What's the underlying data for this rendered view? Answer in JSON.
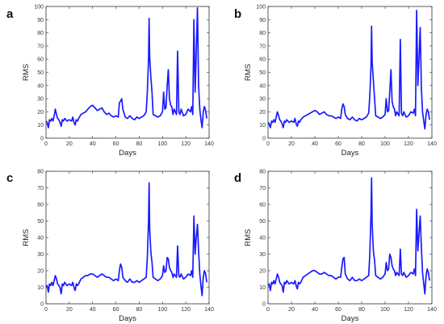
{
  "colors": {
    "series": "#1a1aff",
    "axes": "#333333"
  },
  "chart_data": [
    {
      "type": "line",
      "panel": "a",
      "xlabel": "Days",
      "ylabel": "RMS",
      "xlim": [
        0,
        140
      ],
      "ylim": [
        0,
        100
      ],
      "xticks": [
        0,
        20,
        40,
        60,
        80,
        100,
        120,
        140
      ],
      "yticks": [
        0,
        10,
        20,
        30,
        40,
        50,
        60,
        70,
        80,
        90,
        100
      ],
      "grid": false,
      "series": [
        {
          "x": [
            0,
            1,
            2,
            3,
            4,
            5,
            6,
            7,
            8,
            9,
            10,
            11,
            12,
            13,
            14,
            15,
            16,
            18,
            20,
            22,
            23,
            24,
            25,
            26,
            27,
            28,
            30,
            32,
            34,
            36,
            38,
            40,
            42,
            44,
            46,
            48,
            50,
            52,
            54,
            56,
            58,
            60,
            62,
            63,
            64,
            65,
            66,
            68,
            70,
            72,
            74,
            76,
            78,
            80,
            82,
            84,
            86,
            87,
            88,
            88.5,
            89,
            90,
            91,
            92,
            94,
            96,
            98,
            100,
            101,
            102,
            103,
            104,
            105,
            106,
            107,
            108,
            109,
            110,
            112,
            113,
            114,
            115,
            116,
            118,
            120,
            122,
            124,
            125,
            126,
            127,
            128,
            129,
            130,
            131,
            132,
            133,
            134,
            135,
            136,
            137,
            138
          ],
          "y": [
            13,
            12,
            8,
            14,
            13,
            15,
            13,
            17,
            22,
            18,
            15,
            14,
            12,
            9,
            14,
            13,
            15,
            13,
            14,
            13,
            16,
            12,
            10,
            14,
            13,
            15,
            18,
            19,
            20,
            22,
            24,
            25,
            23,
            21,
            22,
            23,
            20,
            18,
            19,
            17,
            16,
            17,
            16,
            27,
            28,
            30,
            22,
            16,
            15,
            17,
            15,
            14,
            16,
            15,
            16,
            17,
            20,
            35,
            60,
            91,
            62,
            46,
            35,
            18,
            17,
            16,
            17,
            20,
            35,
            22,
            23,
            40,
            52,
            30,
            25,
            24,
            18,
            22,
            18,
            66,
            20,
            18,
            22,
            17,
            18,
            22,
            20,
            24,
            18,
            90,
            35,
            65,
            99,
            40,
            22,
            14,
            8,
            20,
            24,
            21,
            15
          ]
        }
      ]
    },
    {
      "type": "line",
      "panel": "b",
      "xlabel": "Days",
      "ylabel": "RMS",
      "xlim": [
        0,
        140
      ],
      "ylim": [
        0,
        100
      ],
      "xticks": [
        0,
        20,
        40,
        60,
        80,
        100,
        120,
        140
      ],
      "yticks": [
        0,
        10,
        20,
        30,
        40,
        50,
        60,
        70,
        80,
        90,
        100
      ],
      "grid": false,
      "series": [
        {
          "x": [
            0,
            1,
            2,
            3,
            4,
            5,
            6,
            7,
            8,
            9,
            10,
            11,
            12,
            13,
            14,
            15,
            16,
            18,
            20,
            22,
            23,
            24,
            25,
            26,
            27,
            28,
            30,
            32,
            34,
            36,
            38,
            40,
            42,
            44,
            46,
            48,
            50,
            52,
            54,
            56,
            58,
            60,
            62,
            63,
            64,
            65,
            66,
            68,
            70,
            72,
            74,
            76,
            78,
            80,
            82,
            84,
            86,
            87,
            88,
            88.5,
            89,
            90,
            91,
            92,
            94,
            96,
            98,
            100,
            101,
            102,
            103,
            104,
            105,
            106,
            107,
            108,
            109,
            110,
            112,
            113,
            114,
            115,
            116,
            118,
            120,
            122,
            124,
            125,
            126,
            127,
            128,
            129,
            130,
            131,
            132,
            133,
            134,
            135,
            136,
            137,
            138
          ],
          "y": [
            12,
            11,
            8,
            13,
            12,
            14,
            12,
            16,
            20,
            17,
            14,
            13,
            11,
            8,
            13,
            12,
            14,
            12,
            13,
            12,
            15,
            11,
            9,
            13,
            12,
            14,
            16,
            17,
            18,
            19,
            20,
            21,
            20,
            18,
            19,
            20,
            18,
            17,
            17,
            16,
            15,
            16,
            15,
            22,
            26,
            24,
            18,
            15,
            14,
            16,
            14,
            13,
            15,
            14,
            15,
            16,
            19,
            32,
            55,
            85,
            58,
            44,
            30,
            17,
            16,
            15,
            16,
            18,
            30,
            20,
            21,
            35,
            52,
            28,
            24,
            22,
            17,
            20,
            17,
            75,
            19,
            17,
            20,
            16,
            17,
            20,
            19,
            22,
            17,
            97,
            40,
            60,
            84,
            38,
            20,
            13,
            7,
            18,
            22,
            20,
            14
          ]
        }
      ]
    },
    {
      "type": "line",
      "panel": "c",
      "xlabel": "Days",
      "ylabel": "RMS",
      "xlim": [
        0,
        140
      ],
      "ylim": [
        0,
        80
      ],
      "xticks": [
        0,
        20,
        40,
        60,
        80,
        100,
        120,
        140
      ],
      "yticks": [
        0,
        10,
        20,
        30,
        40,
        50,
        60,
        70,
        80
      ],
      "grid": false,
      "series": [
        {
          "x": [
            0,
            1,
            2,
            3,
            4,
            5,
            6,
            7,
            8,
            9,
            10,
            11,
            12,
            13,
            14,
            15,
            16,
            18,
            20,
            22,
            23,
            24,
            25,
            26,
            27,
            28,
            30,
            32,
            34,
            36,
            38,
            40,
            42,
            44,
            46,
            48,
            50,
            52,
            54,
            56,
            58,
            60,
            62,
            63,
            64,
            65,
            66,
            68,
            70,
            72,
            74,
            76,
            78,
            80,
            82,
            84,
            86,
            87,
            88,
            88.5,
            89,
            90,
            91,
            92,
            94,
            96,
            98,
            100,
            101,
            102,
            103,
            104,
            105,
            106,
            107,
            108,
            109,
            110,
            112,
            113,
            114,
            115,
            116,
            118,
            120,
            122,
            124,
            125,
            126,
            127,
            128,
            129,
            130,
            131,
            132,
            133,
            134,
            135,
            136,
            137,
            138
          ],
          "y": [
            10,
            11,
            7,
            12,
            11,
            13,
            11,
            14,
            17,
            15,
            12,
            11,
            10,
            6,
            12,
            11,
            13,
            11,
            12,
            11,
            13,
            10,
            8,
            12,
            11,
            12,
            15,
            16,
            17,
            17,
            18,
            18,
            17,
            16,
            17,
            18,
            17,
            16,
            16,
            15,
            14,
            15,
            14,
            20,
            24,
            22,
            16,
            14,
            13,
            15,
            13,
            13,
            14,
            13,
            14,
            15,
            16,
            28,
            50,
            73,
            45,
            31,
            25,
            16,
            15,
            14,
            15,
            17,
            23,
            19,
            20,
            28,
            27,
            22,
            20,
            19,
            16,
            18,
            16,
            35,
            17,
            16,
            18,
            15,
            16,
            18,
            17,
            20,
            16,
            53,
            30,
            40,
            48,
            32,
            18,
            11,
            5,
            16,
            20,
            18,
            13
          ]
        }
      ]
    },
    {
      "type": "line",
      "panel": "d",
      "xlabel": "Days",
      "ylabel": "RMS",
      "xlim": [
        0,
        140
      ],
      "ylim": [
        0,
        80
      ],
      "xticks": [
        0,
        20,
        40,
        60,
        80,
        100,
        120,
        140
      ],
      "yticks": [
        0,
        10,
        20,
        30,
        40,
        50,
        60,
        70,
        80
      ],
      "grid": false,
      "series": [
        {
          "x": [
            0,
            1,
            2,
            3,
            4,
            5,
            6,
            7,
            8,
            9,
            10,
            11,
            12,
            13,
            14,
            15,
            16,
            18,
            20,
            22,
            23,
            24,
            25,
            26,
            27,
            28,
            30,
            32,
            34,
            36,
            38,
            40,
            42,
            44,
            46,
            48,
            50,
            52,
            54,
            56,
            58,
            60,
            62,
            63,
            64,
            65,
            66,
            68,
            70,
            72,
            74,
            76,
            78,
            80,
            82,
            84,
            86,
            87,
            88,
            88.5,
            89,
            90,
            91,
            92,
            94,
            96,
            98,
            100,
            101,
            102,
            103,
            104,
            105,
            106,
            107,
            108,
            109,
            110,
            112,
            113,
            114,
            115,
            116,
            118,
            120,
            122,
            124,
            125,
            126,
            127,
            128,
            129,
            130,
            131,
            132,
            133,
            134,
            135,
            136,
            137,
            138
          ],
          "y": [
            11,
            12,
            8,
            13,
            12,
            14,
            12,
            15,
            18,
            16,
            13,
            12,
            11,
            7,
            13,
            12,
            14,
            12,
            13,
            12,
            14,
            11,
            9,
            13,
            12,
            13,
            16,
            17,
            18,
            19,
            20,
            20,
            19,
            18,
            18,
            19,
            18,
            17,
            17,
            16,
            15,
            16,
            16,
            22,
            27,
            28,
            18,
            15,
            14,
            16,
            14,
            14,
            15,
            14,
            15,
            16,
            17,
            30,
            55,
            76,
            48,
            32,
            26,
            17,
            16,
            15,
            16,
            18,
            25,
            20,
            21,
            30,
            28,
            23,
            21,
            20,
            17,
            19,
            17,
            33,
            18,
            17,
            19,
            16,
            17,
            19,
            18,
            21,
            17,
            57,
            32,
            42,
            53,
            34,
            19,
            12,
            6,
            17,
            21,
            19,
            14
          ]
        }
      ]
    }
  ]
}
